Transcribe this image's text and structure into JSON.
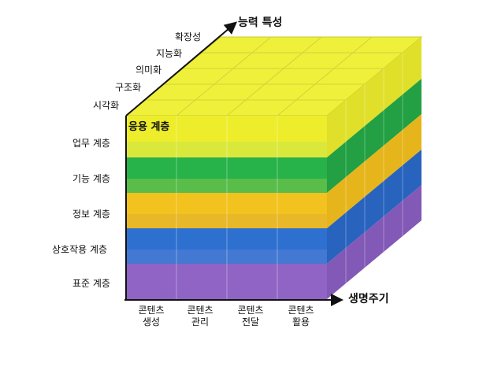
{
  "axes": {
    "vertical_title": "능력 특성",
    "horizontal_title": "생명주기",
    "depth_labels": [
      "시각화",
      "구조화",
      "의미화",
      "지능화",
      "확장성"
    ]
  },
  "layers": [
    {
      "label": "응용 계층",
      "color": "#ecec2a"
    },
    {
      "label": "업무 계층",
      "color": "#f0ef2e"
    },
    {
      "label": "기능 계층",
      "color": "#27b34a"
    },
    {
      "label": "정보 계층",
      "color": "#f3c21e"
    },
    {
      "label": "상호작용 계층",
      "color": "#2d6fd0"
    },
    {
      "label": "표준 계층",
      "color": "#8e63c4"
    }
  ],
  "columns": [
    {
      "line1": "콘텐츠",
      "line2": "생성"
    },
    {
      "line1": "콘텐츠",
      "line2": "관리"
    },
    {
      "line1": "콘텐츠",
      "line2": "전달"
    },
    {
      "line1": "콘텐츠",
      "line2": "활용"
    }
  ]
}
